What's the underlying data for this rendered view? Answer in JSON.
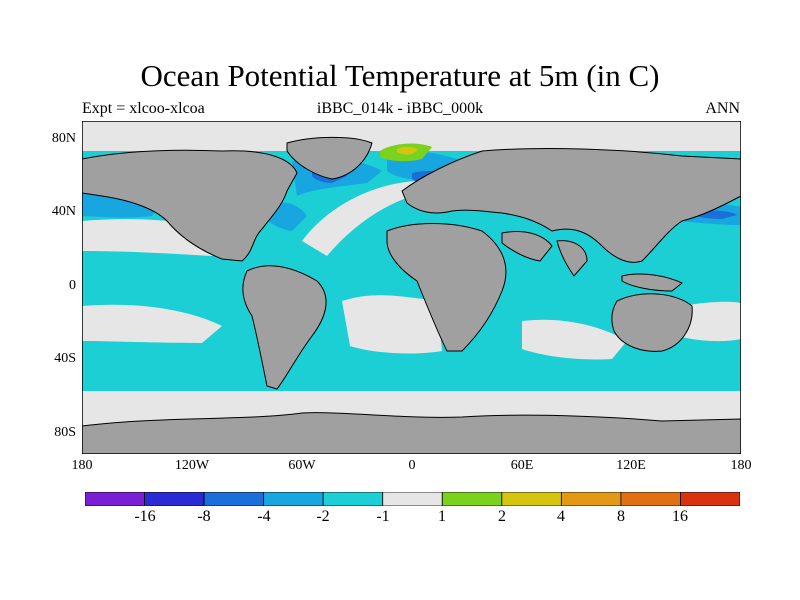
{
  "title": "Ocean Potential Temperature at 5m (in C)",
  "left_string": "Expt = xlcoo-xlcoa",
  "center_string": "iBBC_014k - iBBC_000k",
  "right_string": "ANN",
  "lat_labels": [
    "80N",
    "40N",
    "0",
    "40S",
    "80S"
  ],
  "lon_labels": [
    "180",
    "120W",
    "60W",
    "0",
    "60E",
    "120E",
    "180"
  ],
  "colorbar": {
    "colors": [
      "#7b1fd4",
      "#2b2bd4",
      "#1b6fd8",
      "#18a6e0",
      "#1ccfd4",
      "#e6e6e6",
      "#7ad21e",
      "#d6c50f",
      "#e29a14",
      "#df7013",
      "#d9320e"
    ],
    "labels": [
      "-16",
      "-8",
      "-4",
      "-2",
      "-1",
      "1",
      "2",
      "4",
      "8",
      "16"
    ]
  },
  "colors": {
    "land": "#a0a0a0",
    "ocean_small": "#e6e6e6",
    "ocean_cool": "#1ccfd4",
    "ocean_cooler": "#18a6e0",
    "ocean_coolest": "#1b6fd8",
    "warm": "#7ad21e"
  }
}
